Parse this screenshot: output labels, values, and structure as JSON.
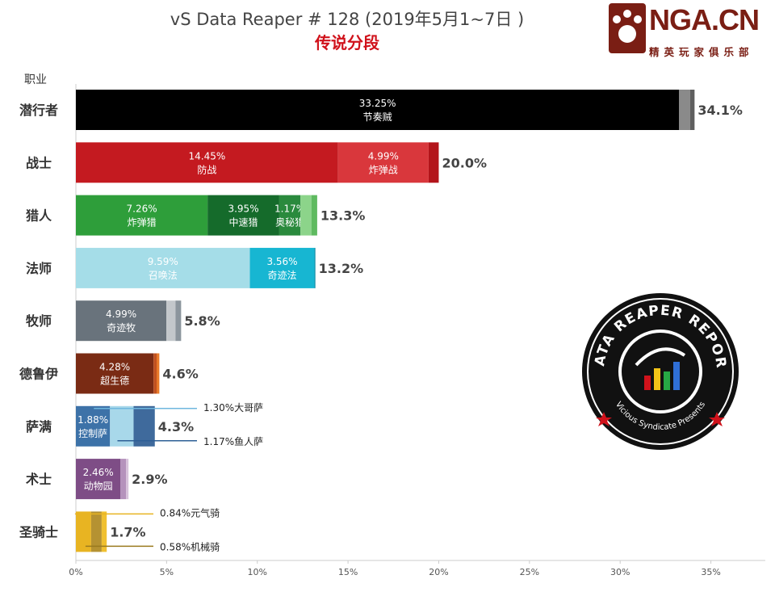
{
  "header": {
    "title": "vS Data Reaper # 128 (2019年5月1~7日 )",
    "subtitle": "传说分段"
  },
  "logo": {
    "text": "NGA.CN",
    "subtext": "精英玩家俱乐部"
  },
  "badge": {
    "text_top": "DATA REAPER REPORT",
    "text_bottom": "Vicious Syndicate Presents"
  },
  "chart_data": {
    "type": "bar",
    "orientation": "horizontal",
    "stacked": true,
    "row_header": "职业",
    "xlim": [
      0,
      38
    ],
    "xticks": [
      "0%",
      "5%",
      "10%",
      "15%",
      "20%",
      "25%",
      "30%",
      "35%"
    ],
    "xtick_values": [
      0,
      5,
      10,
      15,
      20,
      25,
      30,
      35
    ],
    "rows": [
      {
        "label": "潜行者",
        "total": "34.1%",
        "segments": [
          {
            "value": 33.25,
            "color": "#000000",
            "pct": "33.25%",
            "name": "节奏贼"
          },
          {
            "value": 0.6,
            "color": "#8a8a8a"
          },
          {
            "value": 0.25,
            "color": "#5f5f5f"
          }
        ]
      },
      {
        "label": "战士",
        "total": "20.0%",
        "segments": [
          {
            "value": 14.45,
            "color": "#c41a20",
            "pct": "14.45%",
            "name": "防战"
          },
          {
            "value": 4.99,
            "color": "#d9373c",
            "pct": "4.99%",
            "name": "炸弹战"
          },
          {
            "value": 0.56,
            "color": "#b3141a"
          }
        ]
      },
      {
        "label": "猎人",
        "total": "13.3%",
        "segments": [
          {
            "value": 7.26,
            "color": "#2e9e3a",
            "pct": "7.26%",
            "name": "炸弹猎"
          },
          {
            "value": 3.95,
            "color": "#156b2b",
            "pct": "3.95%",
            "name": "中速猎"
          },
          {
            "value": 1.17,
            "color": "#2a8a3d",
            "pct": "1.17%",
            "name": "奥秘猎"
          },
          {
            "value": 0.6,
            "color": "#8cd48a"
          },
          {
            "value": 0.32,
            "color": "#5fba60"
          }
        ]
      },
      {
        "label": "法师",
        "total": "13.2%",
        "segments": [
          {
            "value": 9.59,
            "color": "#a5dde8",
            "pct": "9.59%",
            "name": "召唤法"
          },
          {
            "value": 3.56,
            "color": "#17b6d2",
            "pct": "3.56%",
            "name": "奇迹法"
          },
          {
            "value": 0.05,
            "color": "#0d8aa3"
          }
        ]
      },
      {
        "label": "牧师",
        "total": "5.8%",
        "segments": [
          {
            "value": 4.99,
            "color": "#69737c",
            "pct": "4.99%",
            "name": "奇迹牧"
          },
          {
            "value": 0.5,
            "color": "#c3c7cb"
          },
          {
            "value": 0.31,
            "color": "#8c959d"
          }
        ]
      },
      {
        "label": "德鲁伊",
        "total": "4.6%",
        "segments": [
          {
            "value": 4.28,
            "color": "#7a2b14",
            "pct": "4.28%",
            "name": "超生德"
          },
          {
            "value": 0.17,
            "color": "#c0501f"
          },
          {
            "value": 0.15,
            "color": "#e87a2a"
          }
        ]
      },
      {
        "label": "萨满",
        "total": "4.3%",
        "segments": [
          {
            "value": 1.88,
            "color": "#3d72a8",
            "pct": "1.88%",
            "name": "控制萨"
          },
          {
            "value": 1.3,
            "color": "#a8d8ea"
          },
          {
            "value": 1.17,
            "color": "#3f6a9c"
          }
        ]
      },
      {
        "label": "术士",
        "total": "2.9%",
        "segments": [
          {
            "value": 2.46,
            "color": "#7e4d86",
            "pct": "2.46%",
            "name": "动物园"
          },
          {
            "value": 0.3,
            "color": "#b592bc"
          },
          {
            "value": 0.14,
            "color": "#d8c2dc"
          }
        ]
      },
      {
        "label": "圣骑士",
        "total": "1.7%",
        "segments": [
          {
            "value": 0.84,
            "color": "#e8b422"
          },
          {
            "value": 0.58,
            "color": "#b59232"
          },
          {
            "value": 0.28,
            "color": "#f0c030"
          }
        ]
      }
    ],
    "callouts": [
      {
        "row": 6,
        "text": "1.30%大哥萨",
        "color": "#6fb7de"
      },
      {
        "row": 6,
        "text": "1.17%鱼人萨",
        "color": "#2e5f96"
      },
      {
        "row": 8,
        "text": "0.84%元气骑",
        "color": "#e8b422"
      },
      {
        "row": 8,
        "text": "0.58%机械骑",
        "color": "#9a7a1e"
      }
    ]
  }
}
